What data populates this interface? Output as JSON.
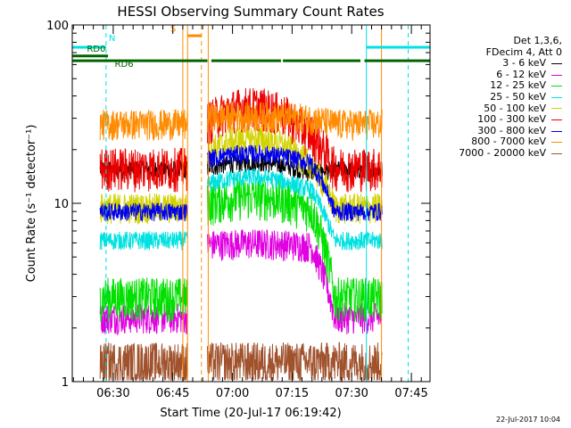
{
  "chart_data": {
    "type": "line",
    "title": "HESSI Observing Summary Count Rates",
    "xlabel": "Start Time (20-Jul-17 06:19:42)",
    "ylabel": "Count Rate (s⁻¹ detector⁻¹)",
    "y_scale": "log",
    "ylim": [
      1,
      100
    ],
    "y_ticks": [
      {
        "value": 1,
        "label": "1"
      },
      {
        "value": 10,
        "label": "10"
      },
      {
        "value": 100,
        "label": "100"
      }
    ],
    "xlim_minutes": [
      0,
      90
    ],
    "x_ticks": [
      {
        "minutes": 10.3,
        "label": "06:30"
      },
      {
        "minutes": 25.3,
        "label": "06:45"
      },
      {
        "minutes": 40.3,
        "label": "07:00"
      },
      {
        "minutes": 55.3,
        "label": "07:15"
      },
      {
        "minutes": 70.3,
        "label": "07:30"
      },
      {
        "minutes": 85.3,
        "label": "07:45"
      }
    ],
    "legend": {
      "placement": "right",
      "header": [
        "Det 1,3,6,",
        "FDecim 4, Att 0"
      ],
      "entries": [
        {
          "label": "3 - 6 keV",
          "color": "#000000"
        },
        {
          "label": "6 - 12 keV",
          "color": "#e100e1"
        },
        {
          "label": "12 - 25 keV",
          "color": "#00e100"
        },
        {
          "label": "25 - 50 keV",
          "color": "#00e1e1"
        },
        {
          "label": "50 - 100 keV",
          "color": "#d2d200"
        },
        {
          "label": "100 - 300 keV",
          "color": "#ee0000"
        },
        {
          "label": "300 - 800 keV",
          "color": "#0000ee"
        },
        {
          "label": "800 - 7000 keV",
          "color": "#ff8c00"
        },
        {
          "label": "7000 - 20000 keV",
          "color": "#a0522d"
        }
      ]
    },
    "data_windows_minutes": [
      [
        7,
        29
      ],
      [
        34,
        78
      ]
    ],
    "series": [
      {
        "name": "3 - 6 keV",
        "color": "#000000",
        "night": 15.5,
        "mid": 15,
        "peak": 17
      },
      {
        "name": "6 - 12 keV",
        "color": "#e100e1",
        "night": 2.3,
        "mid": 5.8,
        "peak": 6
      },
      {
        "name": "12 - 25 keV",
        "color": "#00e100",
        "night": 3,
        "mid": 9.5,
        "peak": 11
      },
      {
        "name": "25 - 50 keV",
        "color": "#00e1e1",
        "night": 6.2,
        "mid": 12,
        "peak": 14
      },
      {
        "name": "50 - 100 keV",
        "color": "#d2d200",
        "night": 9.5,
        "mid": 17,
        "peak": 23
      },
      {
        "name": "100 - 300 keV",
        "color": "#ee0000",
        "night": 16,
        "mid": 25,
        "peak": 35
      },
      {
        "name": "300 - 800 keV",
        "color": "#0000ee",
        "night": 9,
        "mid": 17,
        "peak": 19
      },
      {
        "name": "800 - 7000 keV",
        "color": "#ff8c00",
        "night": 28,
        "mid": 30,
        "peak": 31
      },
      {
        "name": "7000 - 20000 keV",
        "color": "#a0522d",
        "night": 1.3,
        "mid": 1.3,
        "peak": 1.3
      }
    ],
    "annotations": [
      {
        "text": "N",
        "color": "#00e1e1",
        "minutes": 8.5
      },
      {
        "text": "RD0",
        "color": "#006400",
        "minutes": 3
      },
      {
        "text": "RD6",
        "color": "#006400",
        "minutes": 10
      },
      {
        "text": "S",
        "color": "#ff8c00",
        "minutes": 24
      }
    ],
    "flag_bars": [
      {
        "name": "night",
        "color": "#00e1e1",
        "level": 75,
        "segments": [
          [
            0,
            8.5
          ],
          [
            74,
            90
          ]
        ]
      },
      {
        "name": "saa",
        "color": "#ff8c00",
        "level": 87,
        "segments": [
          [
            29,
            32.5
          ]
        ]
      },
      {
        "name": "rd0",
        "color": "#006400",
        "level": 67,
        "segments": [
          [
            0,
            9
          ]
        ]
      },
      {
        "name": "rd6",
        "color": "#006400",
        "level": 63,
        "segments": [
          [
            0,
            34
          ],
          [
            35,
            52.5
          ],
          [
            53,
            72.5
          ],
          [
            73.5,
            90
          ]
        ]
      }
    ],
    "vertical_markers": [
      {
        "minutes": 8.5,
        "color": "#00e1e1",
        "dashed": true
      },
      {
        "minutes": 74,
        "color": "#00e1e1",
        "dashed": false
      },
      {
        "minutes": 84.5,
        "color": "#00e1e1",
        "dashed": true
      },
      {
        "minutes": 27.8,
        "color": "#ff8c00",
        "dashed": false
      },
      {
        "minutes": 29,
        "color": "#ff8c00",
        "dashed": false
      },
      {
        "minutes": 32.5,
        "color": "#ff8c00",
        "dashed": true
      },
      {
        "minutes": 34.2,
        "color": "#ff8c00",
        "dashed": false
      },
      {
        "minutes": 77.8,
        "color": "#ff8c00",
        "dashed": false
      }
    ]
  },
  "timestamp": "22-Jul-2017 10:04"
}
